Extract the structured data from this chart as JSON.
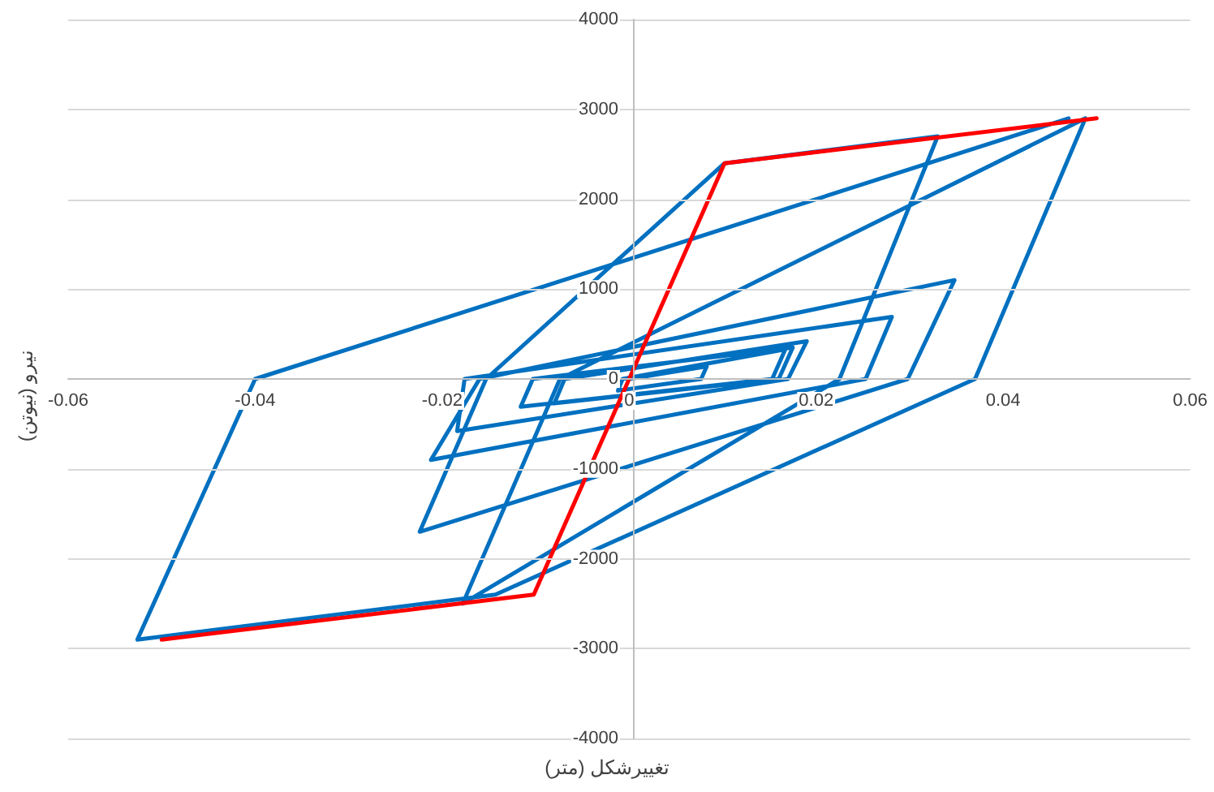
{
  "chart_data": {
    "type": "line",
    "xlabel": "تغییرشکل (متر)",
    "ylabel": "نیرو (نیوتن)",
    "xlim": [
      -0.06,
      0.06
    ],
    "xticks": [
      -0.06,
      -0.04,
      -0.02,
      0,
      0.02,
      0.04,
      0.06
    ],
    "ylim": [
      -4000,
      4000
    ],
    "yticks": [
      -4000,
      -3000,
      -2000,
      -1000,
      0,
      1000,
      2000,
      3000,
      4000
    ],
    "grid": "y",
    "marker": "none",
    "line_style": "solid",
    "series": [
      {
        "color": "#0070c0",
        "x": [
          0,
          0.0083,
          0.0077,
          -0.0012,
          -0.0007,
          0.0167,
          0.0153,
          -0.0116,
          -0.0103,
          0.0175,
          0.016,
          -0.008,
          -0.0069,
          0.019,
          0.017,
          -0.0184,
          -0.0176,
          0.0281,
          0.0253,
          -0.0212,
          -0.016,
          0.0348,
          0.0298,
          -0.0224,
          -0.0153,
          0.0102,
          0.033,
          0.0225,
          -0.0178,
          -0.0074,
          0.0488,
          0.037,
          -0.0143,
          -0.0526,
          -0.04,
          0.047
        ],
        "values": [
          0,
          140,
          0,
          -130,
          0,
          330,
          0,
          -310,
          0,
          350,
          0,
          -270,
          0,
          420,
          0,
          -580,
          0,
          690,
          0,
          -900,
          0,
          1100,
          0,
          -1700,
          0,
          2400,
          2700,
          0,
          -2500,
          0,
          2900,
          0,
          -2400,
          -2900,
          0,
          2900
        ]
      },
      {
        "color": "#ff0000",
        "x": [
          -0.05,
          -0.0102,
          0.0102,
          0.05
        ],
        "values": [
          -2900,
          -2400,
          2400,
          2900
        ]
      }
    ]
  }
}
